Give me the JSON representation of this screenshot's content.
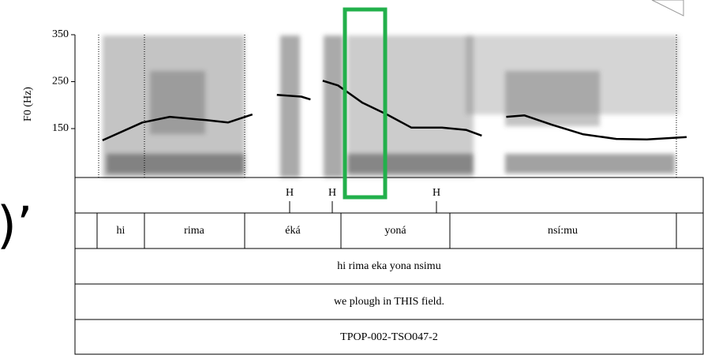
{
  "chart_data": {
    "type": "line",
    "y_label": "F0 (Hz)",
    "x": [
      0.09,
      0.22,
      0.31,
      0.43,
      0.5,
      0.58,
      null,
      0.66,
      0.74,
      0.77,
      null,
      0.81,
      0.86,
      0.94,
      1.02,
      1.1,
      1.2,
      1.28,
      1.33,
      null,
      1.41,
      1.47,
      1.56,
      1.66,
      1.77,
      1.87,
      2.0
    ],
    "series": [
      {
        "color": "#000000",
        "values": [
          125,
          163,
          175,
          168,
          163,
          180,
          null,
          222,
          218,
          212,
          null,
          252,
          242,
          205,
          180,
          152,
          152,
          147,
          135,
          null,
          175,
          178,
          158,
          138,
          128,
          127,
          132
        ]
      }
    ],
    "xlim": [
      0,
      2
    ],
    "ylim": [
      50,
      350
    ],
    "yticks": [
      150,
      250,
      350
    ]
  },
  "tiers": {
    "tones": [
      "H",
      "H",
      "H"
    ],
    "words": [
      "hi",
      "rima",
      "éká",
      "yoná",
      "nsí:mu"
    ],
    "transcription": "hi rima eka yona nsimu",
    "translation": "we plough in THIS field.",
    "id": "TPOP-002-TSO047-2"
  },
  "fragment": ")’"
}
